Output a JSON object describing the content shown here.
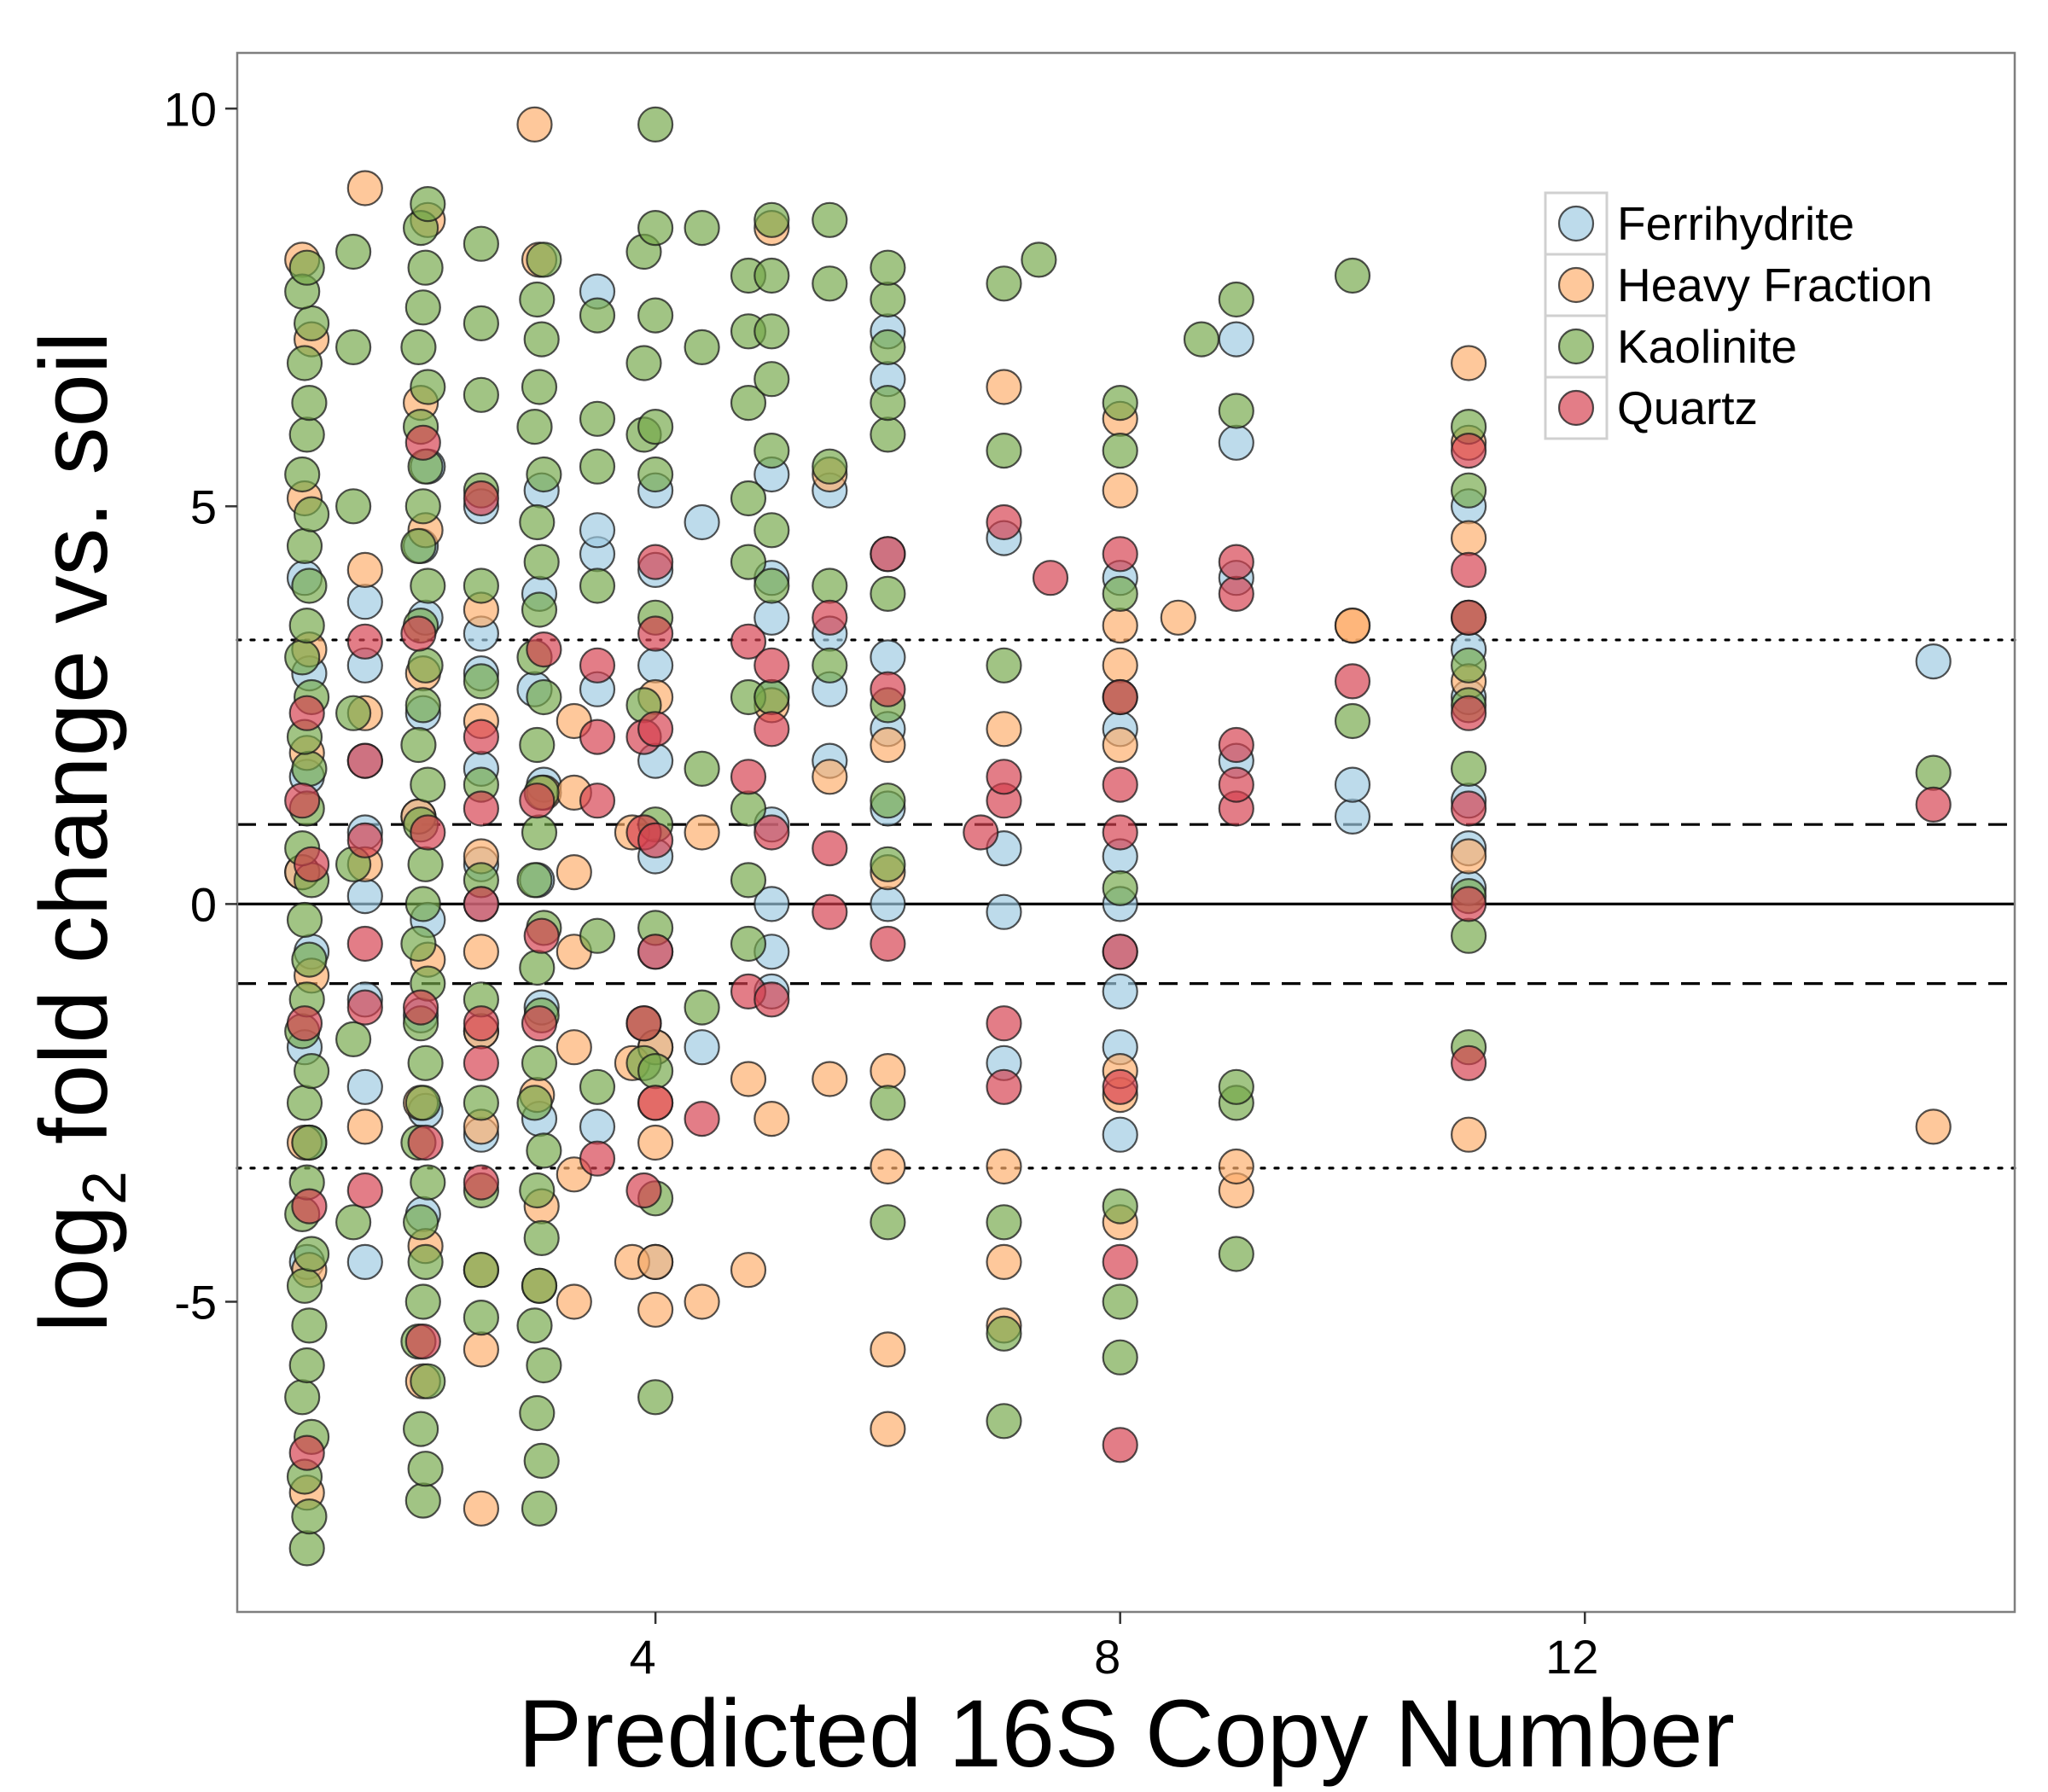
{
  "chart_data": {
    "type": "scatter",
    "title": "",
    "xlabel": "Predicted 16S Copy Number",
    "ylabel_main": "log",
    "ylabel_sub": "2",
    "ylabel_rest": " fold change vs. soil",
    "xlim": [
      0.4,
      15.7
    ],
    "ylim": [
      -8.9,
      10.7
    ],
    "x_ticks": [
      4,
      8,
      12
    ],
    "x_tick_labels": [
      "4",
      "8",
      "12"
    ],
    "y_ticks": [
      10,
      5,
      0,
      -5
    ],
    "y_tick_labels": [
      "10",
      "5",
      "0",
      "-5"
    ],
    "grid": false,
    "legend_position": "top-right",
    "reference_lines": [
      {
        "y": 0,
        "style": "solid"
      },
      {
        "y": 1,
        "style": "dashed"
      },
      {
        "y": -1,
        "style": "dashed"
      },
      {
        "y": 3.32,
        "style": "dotted"
      },
      {
        "y": -3.32,
        "style": "dotted"
      }
    ],
    "series": [
      {
        "name": "Ferrihydrite",
        "color": "#9ecae1",
        "columns": [
          {
            "x": 1,
            "y": [
              -4.5,
              -3,
              -1.8,
              -0.6,
              0.4,
              1.6,
              2.9,
              4.1
            ]
          },
          {
            "x": 1.5,
            "y": [
              -4.5,
              -2.3,
              -1.2,
              0.1,
              0.9,
              1.8,
              3.0,
              3.8
            ]
          },
          {
            "x": 2,
            "y": [
              -3.9,
              -2.6,
              -1.4,
              -0.2,
              1.1,
              2.4,
              3.6,
              4.5,
              5.5
            ]
          },
          {
            "x": 2.5,
            "y": [
              -2.9,
              -1.6,
              0.0,
              0.5,
              1.7,
              2.9,
              3.4,
              5.0
            ]
          },
          {
            "x": 3,
            "y": [
              -2.7,
              -1.3,
              0.3,
              1.5,
              2.7,
              3.9,
              5.2
            ]
          },
          {
            "x": 3.5,
            "y": [
              -2.8,
              2.7,
              4.4,
              4.7,
              7.7
            ]
          },
          {
            "x": 4,
            "y": [
              -4.5,
              -1.8,
              -0.6,
              0.6,
              1.8,
              3.0,
              4.2,
              5.2
            ]
          },
          {
            "x": 4.4,
            "y": [
              -1.8,
              4.8
            ]
          },
          {
            "x": 5,
            "y": [
              -1.1,
              -0.6,
              0.0,
              1.0,
              2.6,
              3.6,
              4.1,
              5.4
            ]
          },
          {
            "x": 5.5,
            "y": [
              1.8,
              2.7,
              3.4,
              5.2
            ]
          },
          {
            "x": 6,
            "y": [
              0.0,
              1.2,
              2.2,
              3.1,
              4.4,
              6.6,
              7.2
            ]
          },
          {
            "x": 7,
            "y": [
              -2.0,
              -0.1,
              0.7,
              4.6
            ]
          },
          {
            "x": 8,
            "y": [
              -2.9,
              -1.8,
              -1.1,
              -0.6,
              0.0,
              0.6,
              2.2,
              4.1
            ]
          },
          {
            "x": 9,
            "y": [
              1.8,
              4.1,
              5.8,
              7.1
            ]
          },
          {
            "x": 10,
            "y": [
              1.1,
              1.5
            ]
          },
          {
            "x": 11,
            "y": [
              0.2,
              0.7,
              1.3,
              2.6,
              3.2,
              5.0
            ]
          },
          {
            "x": 15,
            "y": [
              3.05
            ]
          }
        ]
      },
      {
        "name": "Heavy Fraction",
        "color": "#fdae6b",
        "columns": [
          {
            "x": 1,
            "y": [
              -7.4,
              -4.6,
              -3.0,
              -0.9,
              0.4,
              1.9,
              3.2,
              5.1,
              7.1,
              8.1
            ]
          },
          {
            "x": 1.5,
            "y": [
              -2.8,
              0.5,
              2.4,
              4.2,
              9.0
            ]
          },
          {
            "x": 2,
            "y": [
              -6.0,
              -4.3,
              -2.5,
              -0.7,
              1.1,
              2.9,
              4.7,
              6.3,
              8.6
            ]
          },
          {
            "x": 2.5,
            "y": [
              -7.6,
              -5.6,
              -4.6,
              -2.8,
              -1.6,
              -0.6,
              0.6,
              2.3,
              3.7
            ]
          },
          {
            "x": 3,
            "y": [
              -4.8,
              -3.8,
              -2.4,
              1.4,
              9.8,
              8.1
            ]
          },
          {
            "x": 3.3,
            "y": [
              -5.0,
              -3.4,
              -1.8,
              -0.6,
              0.4,
              1.4,
              2.3
            ]
          },
          {
            "x": 3.8,
            "y": [
              -4.5,
              -2.0,
              0.9
            ]
          },
          {
            "x": 4,
            "y": [
              -5.1,
              -4.5,
              -3.0,
              -2.5,
              -1.8,
              2.6
            ]
          },
          {
            "x": 4.4,
            "y": [
              -5.0,
              0.9
            ]
          },
          {
            "x": 4.8,
            "y": [
              -4.6,
              -2.2
            ]
          },
          {
            "x": 5,
            "y": [
              -2.7,
              2.5,
              8.5
            ]
          },
          {
            "x": 5.5,
            "y": [
              -2.2,
              1.6,
              5.4
            ]
          },
          {
            "x": 6,
            "y": [
              -6.6,
              -5.6,
              -3.3,
              -2.1,
              0.4,
              2.0
            ]
          },
          {
            "x": 7,
            "y": [
              -5.3,
              -4.5,
              -3.3,
              2.2,
              6.5
            ]
          },
          {
            "x": 8,
            "y": [
              -4.0,
              -2.4,
              -2.1,
              2.0,
              3.0,
              3.5,
              5.2,
              6.1
            ]
          },
          {
            "x": 8.5,
            "y": [
              3.6
            ]
          },
          {
            "x": 9,
            "y": [
              -3.6,
              -3.3
            ]
          },
          {
            "x": 10,
            "y": [
              3.5,
              3.5
            ]
          },
          {
            "x": 11,
            "y": [
              -2.9,
              0.6,
              2.8,
              4.6,
              5.8,
              6.8
            ]
          },
          {
            "x": 15,
            "y": [
              -2.8
            ]
          }
        ]
      },
      {
        "name": "Kaolinite",
        "color": "#74a84a",
        "columns": [
          {
            "x": 1,
            "y": [
              -8.1,
              -7.7,
              -7.2,
              -6.7,
              -6.2,
              -5.8,
              -5.3,
              -4.8,
              -4.4,
              -3.9,
              -3.5,
              -3.0,
              -2.5,
              -2.1,
              -1.6,
              -1.2,
              -0.7,
              -0.2,
              0.3,
              0.7,
              1.2,
              1.7,
              2.1,
              2.6,
              3.1,
              3.5,
              4.0,
              4.5,
              4.9,
              5.4,
              5.9,
              6.3,
              6.8,
              7.3,
              7.7,
              8.0
            ]
          },
          {
            "x": 1.4,
            "y": [
              -4.0,
              -1.7,
              0.5,
              2.4,
              5.0,
              7.0,
              8.2
            ]
          },
          {
            "x": 2,
            "y": [
              -7.5,
              -7.1,
              -6.6,
              -6.0,
              -5.5,
              -5.0,
              -4.5,
              -4.0,
              -3.5,
              -3.0,
              -2.5,
              -2.0,
              -1.5,
              -1.0,
              -0.5,
              0.0,
              0.5,
              1.0,
              1.5,
              2.0,
              2.5,
              3.0,
              3.5,
              4.0,
              4.5,
              5.0,
              5.5,
              6.0,
              6.5,
              7.0,
              7.5,
              8.0,
              8.5,
              8.8
            ]
          },
          {
            "x": 2.5,
            "y": [
              -5.2,
              -4.6,
              -3.6,
              -2.5,
              -1.2,
              0.3,
              1.5,
              2.8,
              4.0,
              5.2,
              6.4,
              7.3,
              8.3
            ]
          },
          {
            "x": 3,
            "y": [
              -7.6,
              -7.0,
              -6.4,
              -5.8,
              -5.3,
              -4.8,
              -4.2,
              -3.6,
              -3.1,
              -2.5,
              -2.0,
              -1.4,
              -0.8,
              -0.3,
              0.3,
              0.9,
              1.4,
              2.0,
              2.6,
              3.1,
              3.7,
              4.3,
              4.8,
              5.4,
              6.0,
              6.5,
              7.1,
              7.6,
              8.1
            ]
          },
          {
            "x": 3.5,
            "y": [
              -2.3,
              -0.4,
              4.0,
              5.5,
              6.1,
              7.4
            ]
          },
          {
            "x": 3.9,
            "y": [
              -2.0,
              -1.5,
              2.5,
              5.9,
              6.8,
              8.2
            ]
          },
          {
            "x": 4,
            "y": [
              -6.2,
              -3.7,
              -2.1,
              -0.3,
              1.0,
              3.6,
              5.4,
              6.0,
              7.4,
              8.5,
              9.8
            ]
          },
          {
            "x": 4.4,
            "y": [
              -1.3,
              1.7,
              7.0,
              8.5
            ]
          },
          {
            "x": 4.8,
            "y": [
              -0.5,
              0.3,
              1.2,
              2.6,
              4.3,
              5.1,
              6.3,
              7.2,
              7.9
            ]
          },
          {
            "x": 5,
            "y": [
              2.6,
              4.0,
              4.7,
              5.7,
              6.6,
              7.2,
              7.9,
              8.6
            ]
          },
          {
            "x": 5.5,
            "y": [
              3.0,
              4.0,
              5.5,
              7.8,
              8.6
            ]
          },
          {
            "x": 6,
            "y": [
              -4.0,
              -2.5,
              0.5,
              1.3,
              2.5,
              3.9,
              5.9,
              6.3,
              7.0,
              7.6,
              8.0
            ]
          },
          {
            "x": 7,
            "y": [
              -6.5,
              -5.4,
              -4.0,
              3.0,
              5.7,
              7.8
            ]
          },
          {
            "x": 7.3,
            "y": [
              8.1
            ]
          },
          {
            "x": 8,
            "y": [
              -5.7,
              -5.0,
              -3.8,
              0.2,
              2.6,
              3.9,
              5.7,
              6.3
            ]
          },
          {
            "x": 8.7,
            "y": [
              7.1
            ]
          },
          {
            "x": 9,
            "y": [
              -4.4,
              -2.5,
              -2.3,
              6.2,
              7.6
            ]
          },
          {
            "x": 10,
            "y": [
              7.9,
              2.3
            ]
          },
          {
            "x": 11,
            "y": [
              -1.8,
              -0.4,
              0.1,
              1.7,
              2.5,
              3.0,
              3.6,
              5.2,
              6.0
            ]
          },
          {
            "x": 15,
            "y": [
              1.65
            ]
          }
        ]
      },
      {
        "name": "Quartz",
        "color": "#d6404e",
        "columns": [
          {
            "x": 1,
            "y": [
              -6.9,
              -3.8,
              -1.5,
              0.5,
              1.3,
              2.4
            ]
          },
          {
            "x": 1.5,
            "y": [
              -3.6,
              -1.3,
              -0.5,
              0.8,
              1.8,
              3.3
            ]
          },
          {
            "x": 2,
            "y": [
              -5.5,
              -3.0,
              -1.3,
              0.9,
              3.4,
              5.8
            ]
          },
          {
            "x": 2.5,
            "y": [
              -3.5,
              -2.0,
              -1.5,
              0.0,
              1.2,
              2.1,
              5.1
            ]
          },
          {
            "x": 3,
            "y": [
              -1.5,
              -0.4,
              1.3,
              3.2
            ]
          },
          {
            "x": 3.5,
            "y": [
              -3.2,
              1.3,
              2.1,
              3.0
            ]
          },
          {
            "x": 3.9,
            "y": [
              -3.6,
              -1.5,
              0.9,
              2.1
            ]
          },
          {
            "x": 4,
            "y": [
              -2.5,
              -0.6,
              0.8,
              2.2,
              3.4,
              4.3
            ]
          },
          {
            "x": 4.4,
            "y": [
              -2.7
            ]
          },
          {
            "x": 4.8,
            "y": [
              -1.1,
              1.6,
              3.3
            ]
          },
          {
            "x": 5,
            "y": [
              -1.2,
              0.9,
              2.2,
              3.0
            ]
          },
          {
            "x": 5.5,
            "y": [
              -0.1,
              0.7,
              3.6
            ]
          },
          {
            "x": 6,
            "y": [
              -0.5,
              2.7,
              4.4
            ]
          },
          {
            "x": 6.8,
            "y": [
              0.9
            ]
          },
          {
            "x": 7,
            "y": [
              -2.3,
              -1.5,
              1.3,
              1.6,
              4.8
            ]
          },
          {
            "x": 7.4,
            "y": [
              4.1
            ]
          },
          {
            "x": 8,
            "y": [
              -6.8,
              -4.5,
              -2.3,
              -0.6,
              0.9,
              1.5,
              2.6,
              4.4
            ]
          },
          {
            "x": 9,
            "y": [
              1.2,
              1.5,
              2.0,
              3.9,
              4.3
            ]
          },
          {
            "x": 10,
            "y": [
              2.8
            ]
          },
          {
            "x": 11,
            "y": [
              -2.0,
              0.0,
              1.2,
              2.4,
              3.6,
              4.2,
              5.7
            ]
          },
          {
            "x": 15,
            "y": [
              1.25
            ]
          }
        ]
      }
    ]
  }
}
